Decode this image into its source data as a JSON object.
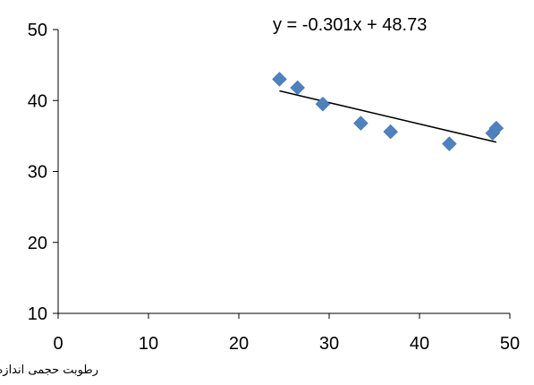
{
  "chart_data": {
    "type": "scatter",
    "title": "",
    "xlabel": "رطوبت حجمی اندازه گیری شده (%)",
    "ylabel": "",
    "xlim": [
      0,
      50
    ],
    "ylim": [
      10,
      50
    ],
    "xticks": [
      0,
      10,
      20,
      30,
      40,
      50
    ],
    "yticks": [
      10,
      20,
      30,
      40,
      50
    ],
    "grid": false,
    "legend": false,
    "series": [
      {
        "color": "#4F81BD",
        "marker": "diamond",
        "points": [
          {
            "x": 24.5,
            "y": 43.0
          },
          {
            "x": 26.5,
            "y": 41.8
          },
          {
            "x": 29.3,
            "y": 39.5
          },
          {
            "x": 33.5,
            "y": 36.8
          },
          {
            "x": 36.8,
            "y": 35.6
          },
          {
            "x": 43.3,
            "y": 33.9
          },
          {
            "x": 48.1,
            "y": 35.4
          },
          {
            "x": 48.5,
            "y": 36.1
          }
        ]
      }
    ],
    "trendline": {
      "type": "linear",
      "slope": -0.301,
      "intercept": 48.73,
      "x_range": [
        24.5,
        48.5
      ],
      "color": "#000000",
      "equation_label": "y = -0.301x + 48.73"
    }
  }
}
